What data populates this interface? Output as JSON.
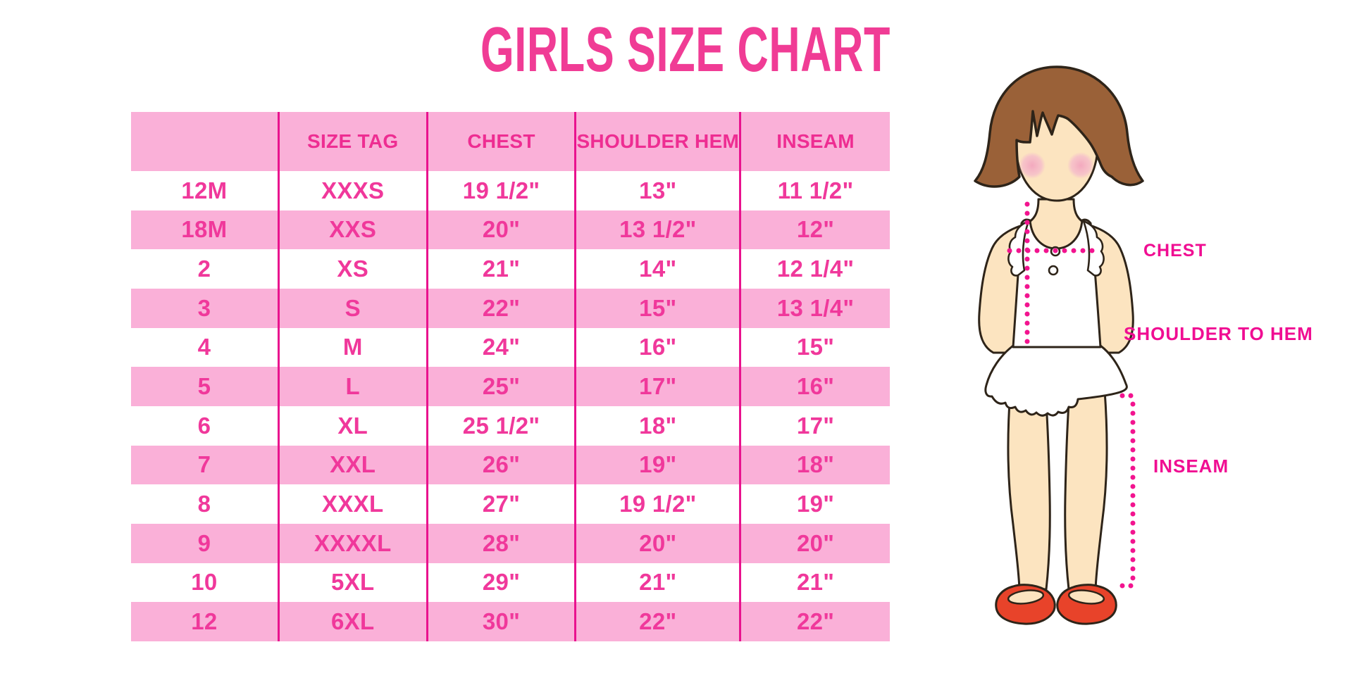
{
  "title": "GIRLS SIZE CHART",
  "chart_data": {
    "type": "table",
    "title": "GIRLS SIZE CHART",
    "columns": [
      "",
      "SIZE TAG",
      "CHEST",
      "SHOULDER HEM",
      "INSEAM"
    ],
    "rows": [
      [
        "12M",
        "XXXS",
        "19 1/2\"",
        "13\"",
        "11 1/2\""
      ],
      [
        "18M",
        "XXS",
        "20\"",
        "13 1/2\"",
        "12\""
      ],
      [
        "2",
        "XS",
        "21\"",
        "14\"",
        "12 1/4\""
      ],
      [
        "3",
        "S",
        "22\"",
        "15\"",
        "13 1/4\""
      ],
      [
        "4",
        "M",
        "24\"",
        "16\"",
        "15\""
      ],
      [
        "5",
        "L",
        "25\"",
        "17\"",
        "16\""
      ],
      [
        "6",
        "XL",
        "25 1/2\"",
        "18\"",
        "17\""
      ],
      [
        "7",
        "XXL",
        "26\"",
        "19\"",
        "18\""
      ],
      [
        "8",
        "XXXL",
        "27\"",
        "19 1/2\"",
        "19\""
      ],
      [
        "9",
        "XXXXL",
        "28\"",
        "20\"",
        "20\""
      ],
      [
        "10",
        "5XL",
        "29\"",
        "21\"",
        "21\""
      ],
      [
        "12",
        "6XL",
        "30\"",
        "22\"",
        "22\""
      ]
    ],
    "layout": {
      "striped_rows": true,
      "stripe_color": "#FAB0D8",
      "column_lines": "#E9128E",
      "grid": "columns-only"
    }
  },
  "figure": {
    "labels": {
      "chest": "CHEST",
      "shoulder_to_hem": "SHOULDER TO HEM",
      "inseam": "INSEAM"
    },
    "illustration": "toddler-girl-front-view-with-dotted-measurement-lines"
  },
  "colors": {
    "title_pink": "#F03C95",
    "row_pink": "#FAB0D8",
    "header_text_pink": "#EE2D92",
    "table_text_pink": "#F0389B",
    "column_line_magenta": "#E9128E",
    "label_magenta": "#F00D92",
    "dotted_line_magenta": "#F2148F",
    "hair_brown": "#9A6138",
    "skin": "#FCE4C0",
    "blush": "#F3A8BE",
    "shoe_red": "#E8432A",
    "outline": "#2E2419"
  }
}
